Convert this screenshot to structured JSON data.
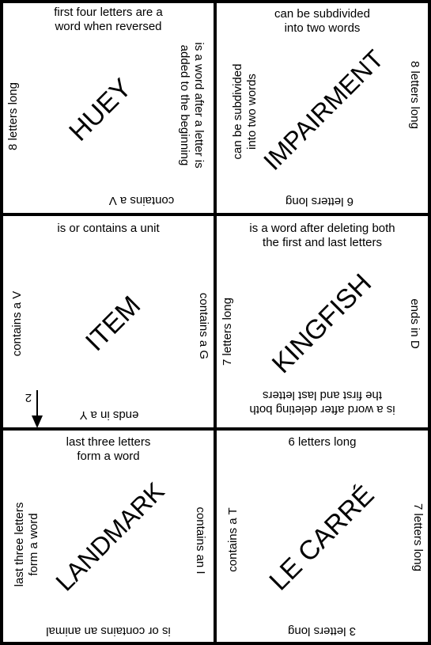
{
  "tiles": [
    {
      "word": "HUEY",
      "top": "first four letters are a\nword when reversed",
      "right": "is a word after a letter is\nadded to the beginning",
      "bottom": "contains a V",
      "left": "8 letters long"
    },
    {
      "word": "IMPAIRMENT",
      "top": "can be subdivided\ninto two words",
      "right": "8 letters long",
      "bottom": "6 letters long",
      "left": "can be subdivided\ninto two words"
    },
    {
      "word": "ITEM",
      "top": "is or contains a unit",
      "right": "contains a G",
      "bottom": "ends in a Y",
      "left": "contains a V"
    },
    {
      "word": "KINGFISH",
      "top": "is a word after deleting both\nthe first and last letters",
      "right": "ends in D",
      "bottom": "is a word after deleting both\nthe first and last letters",
      "left": "7 letters long"
    },
    {
      "word": "LANDMARK",
      "top": "last three letters\nform a word",
      "right": "contains an I",
      "bottom": "is or contains an animal",
      "left": "last three letters\nform a word"
    },
    {
      "word": "LE CARRÉ",
      "top": "6 letters long",
      "right": "7 letters long",
      "bottom": "3 letters long",
      "left": "contains a T"
    }
  ],
  "marker": {
    "label": "2"
  }
}
